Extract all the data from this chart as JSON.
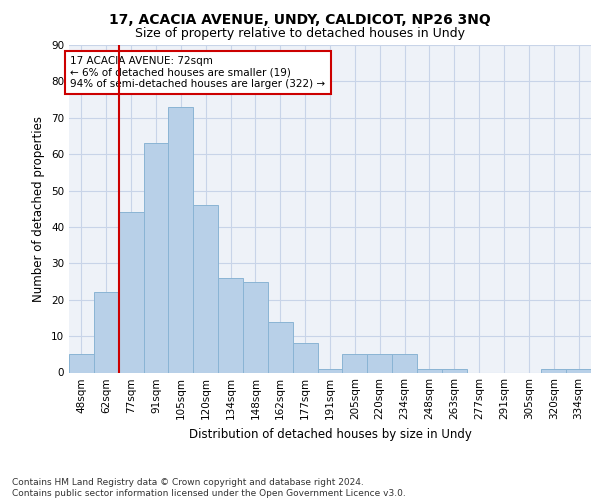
{
  "title1": "17, ACACIA AVENUE, UNDY, CALDICOT, NP26 3NQ",
  "title2": "Size of property relative to detached houses in Undy",
  "xlabel": "Distribution of detached houses by size in Undy",
  "ylabel": "Number of detached properties",
  "categories": [
    "48sqm",
    "62sqm",
    "77sqm",
    "91sqm",
    "105sqm",
    "120sqm",
    "134sqm",
    "148sqm",
    "162sqm",
    "177sqm",
    "191sqm",
    "205sqm",
    "220sqm",
    "234sqm",
    "248sqm",
    "263sqm",
    "277sqm",
    "291sqm",
    "305sqm",
    "320sqm",
    "334sqm"
  ],
  "values": [
    5,
    22,
    44,
    63,
    73,
    46,
    26,
    25,
    14,
    8,
    1,
    5,
    5,
    5,
    1,
    1,
    0,
    0,
    0,
    1,
    1
  ],
  "bar_color": "#b8d0e8",
  "bar_edge_color": "#8ab4d4",
  "vline_color": "#cc0000",
  "vline_x": 1.5,
  "annotation_text": "17 ACACIA AVENUE: 72sqm\n← 6% of detached houses are smaller (19)\n94% of semi-detached houses are larger (322) →",
  "annotation_box_color": "#ffffff",
  "annotation_box_edge": "#cc0000",
  "ylim": [
    0,
    90
  ],
  "yticks": [
    0,
    10,
    20,
    30,
    40,
    50,
    60,
    70,
    80,
    90
  ],
  "grid_color": "#c8d4e8",
  "bg_color": "#eef2f8",
  "footer": "Contains HM Land Registry data © Crown copyright and database right 2024.\nContains public sector information licensed under the Open Government Licence v3.0.",
  "title1_fontsize": 10,
  "title2_fontsize": 9,
  "xlabel_fontsize": 8.5,
  "ylabel_fontsize": 8.5,
  "tick_fontsize": 7.5,
  "footer_fontsize": 6.5,
  "annotation_fontsize": 7.5
}
